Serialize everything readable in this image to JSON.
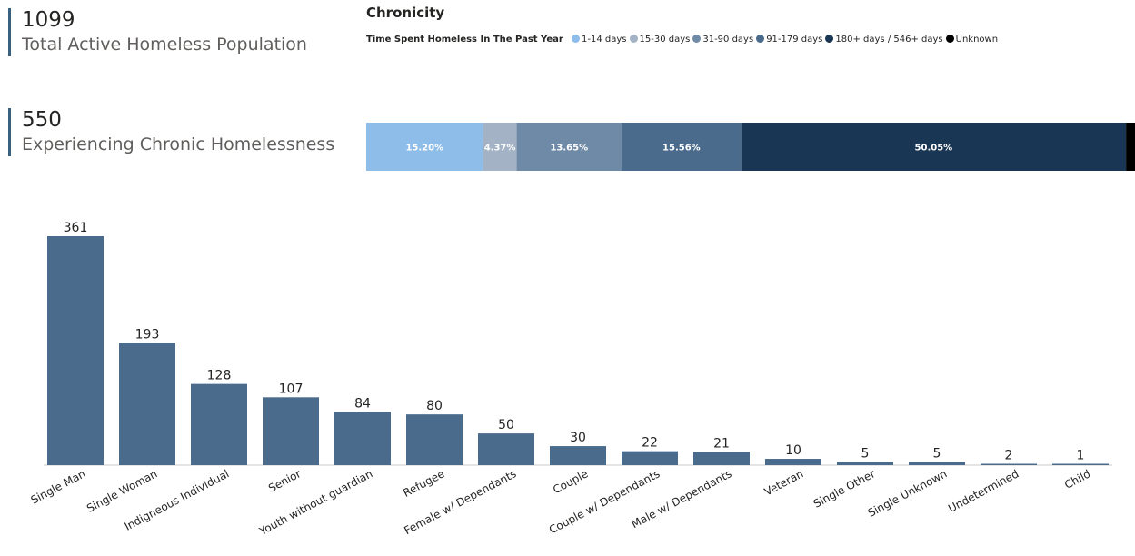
{
  "kpis": {
    "total": {
      "value": "1099",
      "label": "Total Active Homeless Population"
    },
    "chronic": {
      "value": "550",
      "label": "Experiencing Chronic Homelessness"
    }
  },
  "chronicity": {
    "title": "Chronicity",
    "legend_title": "Time Spent Homeless In The Past Year",
    "legend": [
      {
        "label": "1-14 days",
        "color": "#8dbde8"
      },
      {
        "label": "15-30 days",
        "color": "#a3b2c4"
      },
      {
        "label": "31-90 days",
        "color": "#6f8aa6"
      },
      {
        "label": "91-179 days",
        "color": "#4a6b8c"
      },
      {
        "label": "180+ days / 546+ days",
        "color": "#1a3655"
      },
      {
        "label": "Unknown",
        "color": "#000000"
      }
    ]
  },
  "chart_data": [
    {
      "type": "bar",
      "orientation": "horizontal-stacked-100",
      "title": "Chronicity",
      "legend_title": "Time Spent Homeless In The Past Year",
      "series": [
        {
          "name": "1-14 days",
          "value": 15.2,
          "label": "15.20%"
        },
        {
          "name": "15-30 days",
          "value": 4.37,
          "label": "4.37%"
        },
        {
          "name": "31-90 days",
          "value": 13.65,
          "label": "13.65%"
        },
        {
          "name": "91-179 days",
          "value": 15.56,
          "label": "15.56%"
        },
        {
          "name": "180+ days / 546+ days",
          "value": 50.05,
          "label": "50.05%"
        },
        {
          "name": "Unknown",
          "value": 1.17,
          "label": ""
        }
      ]
    },
    {
      "type": "bar",
      "categories": [
        "Single Man",
        "Single Woman",
        "Indigneous Individual",
        "Senior",
        "Youth without guardian",
        "Refugee",
        "Female w/ Dependants",
        "Couple",
        "Couple w/ Dependants",
        "Male w/ Dependants",
        "Veteran",
        "Single Other",
        "Single Unknown",
        "Undetermined",
        "Child"
      ],
      "values": [
        361,
        193,
        128,
        107,
        84,
        80,
        50,
        30,
        22,
        21,
        10,
        5,
        5,
        2,
        1
      ],
      "color": "#4a6b8c",
      "ylim": [
        0,
        361
      ]
    }
  ]
}
